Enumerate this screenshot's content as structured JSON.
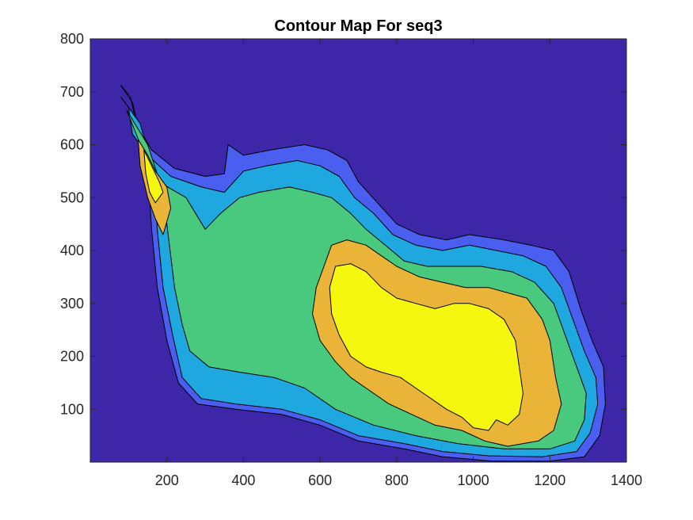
{
  "chart_data": {
    "type": "contour",
    "title": "Contour Map For seq3",
    "xlabel": "",
    "ylabel": "",
    "xlim": [
      0,
      1400
    ],
    "ylim": [
      0,
      800
    ],
    "xticks": [
      200,
      400,
      600,
      800,
      1000,
      1200,
      1400
    ],
    "yticks": [
      100,
      200,
      300,
      400,
      500,
      600,
      700,
      800
    ],
    "grid": false,
    "colormap": "parula",
    "levels": [
      {
        "level": 0,
        "color": "#3e26a8"
      },
      {
        "level": 1,
        "color": "#4a5ef0"
      },
      {
        "level": 2,
        "color": "#1fa7e0"
      },
      {
        "level": 3,
        "color": "#48c97e"
      },
      {
        "level": 4,
        "color": "#e9b437"
      },
      {
        "level": 5,
        "color": "#f5f70f"
      }
    ],
    "regions": [
      {
        "level": 1,
        "points": [
          [
            80,
            712
          ],
          [
            105,
            690
          ],
          [
            120,
            640
          ],
          [
            160,
            590
          ],
          [
            220,
            555
          ],
          [
            300,
            540
          ],
          [
            350,
            545
          ],
          [
            360,
            600
          ],
          [
            400,
            580
          ],
          [
            470,
            590
          ],
          [
            560,
            600
          ],
          [
            620,
            590
          ],
          [
            670,
            570
          ],
          [
            700,
            530
          ],
          [
            750,
            490
          ],
          [
            800,
            450
          ],
          [
            860,
            430
          ],
          [
            930,
            420
          ],
          [
            990,
            430
          ],
          [
            1080,
            420
          ],
          [
            1150,
            410
          ],
          [
            1210,
            400
          ],
          [
            1250,
            360
          ],
          [
            1280,
            290
          ],
          [
            1310,
            230
          ],
          [
            1340,
            180
          ],
          [
            1345,
            110
          ],
          [
            1330,
            50
          ],
          [
            1290,
            10
          ],
          [
            1200,
            2
          ],
          [
            1050,
            2
          ],
          [
            920,
            10
          ],
          [
            820,
            25
          ],
          [
            700,
            40
          ],
          [
            600,
            70
          ],
          [
            500,
            90
          ],
          [
            380,
            100
          ],
          [
            280,
            110
          ],
          [
            230,
            150
          ],
          [
            200,
            230
          ],
          [
            175,
            330
          ],
          [
            160,
            440
          ],
          [
            150,
            560
          ],
          [
            110,
            680
          ]
        ]
      },
      {
        "level": 2,
        "points": [
          [
            80,
            690
          ],
          [
            100,
            670
          ],
          [
            110,
            620
          ],
          [
            150,
            580
          ],
          [
            210,
            540
          ],
          [
            290,
            520
          ],
          [
            350,
            510
          ],
          [
            400,
            550
          ],
          [
            460,
            560
          ],
          [
            540,
            570
          ],
          [
            600,
            560
          ],
          [
            650,
            540
          ],
          [
            690,
            500
          ],
          [
            740,
            470
          ],
          [
            790,
            430
          ],
          [
            850,
            410
          ],
          [
            920,
            400
          ],
          [
            990,
            410
          ],
          [
            1060,
            400
          ],
          [
            1130,
            390
          ],
          [
            1190,
            370
          ],
          [
            1230,
            330
          ],
          [
            1260,
            270
          ],
          [
            1290,
            210
          ],
          [
            1320,
            160
          ],
          [
            1325,
            110
          ],
          [
            1305,
            55
          ],
          [
            1270,
            20
          ],
          [
            1180,
            10
          ],
          [
            1040,
            12
          ],
          [
            920,
            20
          ],
          [
            820,
            35
          ],
          [
            700,
            50
          ],
          [
            600,
            80
          ],
          [
            500,
            100
          ],
          [
            380,
            110
          ],
          [
            290,
            120
          ],
          [
            240,
            160
          ],
          [
            215,
            240
          ],
          [
            190,
            330
          ],
          [
            175,
            440
          ],
          [
            165,
            550
          ],
          [
            130,
            640
          ]
        ]
      },
      {
        "level": 3,
        "points": [
          [
            95,
            665
          ],
          [
            120,
            620
          ],
          [
            150,
            560
          ],
          [
            190,
            525
          ],
          [
            250,
            500
          ],
          [
            300,
            440
          ],
          [
            340,
            470
          ],
          [
            390,
            500
          ],
          [
            440,
            510
          ],
          [
            520,
            520
          ],
          [
            580,
            510
          ],
          [
            630,
            500
          ],
          [
            680,
            470
          ],
          [
            720,
            440
          ],
          [
            770,
            410
          ],
          [
            820,
            380
          ],
          [
            880,
            370
          ],
          [
            950,
            370
          ],
          [
            1020,
            370
          ],
          [
            1100,
            360
          ],
          [
            1160,
            340
          ],
          [
            1210,
            300
          ],
          [
            1240,
            240
          ],
          [
            1270,
            180
          ],
          [
            1295,
            130
          ],
          [
            1290,
            80
          ],
          [
            1265,
            40
          ],
          [
            1200,
            25
          ],
          [
            1080,
            25
          ],
          [
            960,
            35
          ],
          [
            850,
            50
          ],
          [
            740,
            70
          ],
          [
            640,
            100
          ],
          [
            560,
            140
          ],
          [
            480,
            160
          ],
          [
            390,
            170
          ],
          [
            310,
            180
          ],
          [
            260,
            210
          ],
          [
            240,
            260
          ],
          [
            220,
            330
          ],
          [
            205,
            420
          ],
          [
            190,
            510
          ],
          [
            150,
            600
          ]
        ]
      },
      {
        "level": 4,
        "points": [
          [
            125,
            610
          ],
          [
            150,
            580
          ],
          [
            170,
            550
          ],
          [
            200,
            520
          ],
          [
            210,
            480
          ],
          [
            190,
            430
          ],
          [
            170,
            460
          ],
          [
            150,
            500
          ],
          [
            130,
            560
          ]
        ]
      },
      {
        "level": 4,
        "points": [
          [
            630,
            410
          ],
          [
            670,
            420
          ],
          [
            720,
            410
          ],
          [
            760,
            390
          ],
          [
            800,
            370
          ],
          [
            860,
            350
          ],
          [
            920,
            340
          ],
          [
            980,
            330
          ],
          [
            1040,
            330
          ],
          [
            1090,
            320
          ],
          [
            1140,
            310
          ],
          [
            1180,
            270
          ],
          [
            1200,
            230
          ],
          [
            1215,
            160
          ],
          [
            1230,
            110
          ],
          [
            1210,
            60
          ],
          [
            1170,
            40
          ],
          [
            1090,
            30
          ],
          [
            1030,
            40
          ],
          [
            970,
            60
          ],
          [
            900,
            70
          ],
          [
            840,
            90
          ],
          [
            780,
            110
          ],
          [
            720,
            140
          ],
          [
            680,
            160
          ],
          [
            640,
            190
          ],
          [
            600,
            230
          ],
          [
            580,
            280
          ],
          [
            590,
            330
          ],
          [
            610,
            370
          ]
        ]
      },
      {
        "level": 5,
        "points": [
          [
            140,
            590
          ],
          [
            160,
            560
          ],
          [
            180,
            530
          ],
          [
            190,
            510
          ],
          [
            170,
            490
          ],
          [
            155,
            510
          ],
          [
            145,
            545
          ]
        ]
      },
      {
        "level": 5,
        "points": [
          [
            640,
            370
          ],
          [
            680,
            375
          ],
          [
            720,
            360
          ],
          [
            760,
            330
          ],
          [
            800,
            310
          ],
          [
            850,
            300
          ],
          [
            900,
            290
          ],
          [
            950,
            300
          ],
          [
            990,
            300
          ],
          [
            1040,
            290
          ],
          [
            1080,
            270
          ],
          [
            1110,
            230
          ],
          [
            1120,
            180
          ],
          [
            1130,
            130
          ],
          [
            1120,
            90
          ],
          [
            1090,
            70
          ],
          [
            1060,
            80
          ],
          [
            1040,
            60
          ],
          [
            1000,
            65
          ],
          [
            970,
            85
          ],
          [
            930,
            100
          ],
          [
            890,
            120
          ],
          [
            850,
            140
          ],
          [
            810,
            160
          ],
          [
            760,
            170
          ],
          [
            720,
            180
          ],
          [
            680,
            200
          ],
          [
            650,
            240
          ],
          [
            630,
            280
          ],
          [
            625,
            330
          ]
        ]
      }
    ]
  }
}
